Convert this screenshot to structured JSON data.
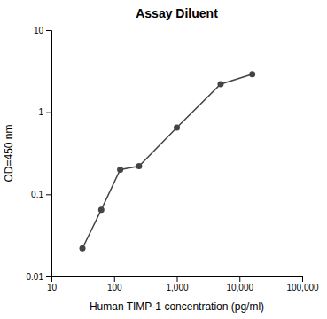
{
  "chart_data": {
    "type": "line",
    "title": "Assay Diluent",
    "xlabel": "Human TIMP-1 concentration (pg/ml)",
    "ylabel": "OD=450 nm",
    "x": [
      31.25,
      62.5,
      125,
      250,
      1000,
      5000,
      16000
    ],
    "values": [
      0.022,
      0.065,
      0.2,
      0.22,
      0.65,
      2.2,
      2.9
    ],
    "color": "#444444",
    "marker": "circle",
    "log": true,
    "grid": false,
    "xlim": [
      10,
      100000
    ],
    "ylim": [
      0.01,
      10
    ],
    "xticks": [
      10,
      100,
      {
        "value": 1000,
        "label": "1,000"
      },
      {
        "value": 10000,
        "label": "10,000"
      },
      {
        "value": 100000,
        "label": "100,000"
      }
    ],
    "yticks": [
      0.01,
      0.1,
      1,
      10
    ]
  }
}
